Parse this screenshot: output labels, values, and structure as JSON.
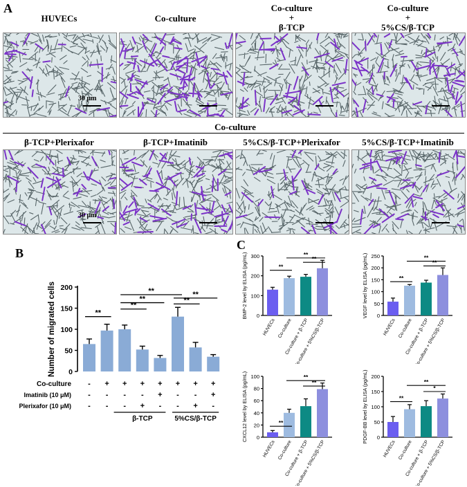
{
  "panelA": {
    "letter": "A",
    "row1_labels": [
      [
        "HUVECs"
      ],
      [
        "Co-culture"
      ],
      [
        "Co-culture",
        "+",
        "β-TCP"
      ],
      [
        "Co-culture",
        "+",
        "5%CS/β-TCP"
      ]
    ],
    "coculture_label": "Co-culture",
    "row2_labels": [
      "β-TCP+Plerixafor",
      "β-TCP+Imatinib",
      "5%CS/β-TCP+Plerixafor",
      "5%CS/β-TCP+Imatinib"
    ],
    "scale_label": "30 μm"
  },
  "panelB": {
    "letter": "B",
    "ylabel": "Number of migrated cells",
    "yticks": [
      "0",
      "50",
      "100",
      "150",
      "200"
    ],
    "row_labels": [
      "Co-culture",
      "Imatinib (10 μM)",
      "Plerixafor (10 μM)"
    ],
    "rows": [
      [
        "-",
        "+",
        "+",
        "+",
        "+",
        "+",
        "+",
        "+"
      ],
      [
        "-",
        "-",
        "-",
        "-",
        "+",
        "-",
        "-",
        "+"
      ],
      [
        "-",
        "-",
        "-",
        "+",
        "-",
        "-",
        "+",
        "-"
      ]
    ],
    "group_labels": [
      "β-TCP",
      "5%CS/β-TCP"
    ],
    "sig": "**"
  },
  "panelC": {
    "letter": "C",
    "categories": [
      "HUVECs",
      "Co-culture",
      "Co-culture + β-TCP",
      "Co-culture + 5%CS/β-TCP"
    ],
    "sig": [
      "**",
      "*"
    ]
  },
  "chart_data": [
    {
      "type": "bar",
      "ylabel": "Number of migrated cells",
      "ylim": [
        0,
        200
      ],
      "values": [
        65,
        97,
        100,
        52,
        32,
        130,
        57,
        35
      ],
      "errors": [
        12,
        15,
        10,
        8,
        6,
        22,
        12,
        5
      ]
    },
    {
      "type": "bar",
      "ylabel": "BMP-2 level by ELISA (pg/mL)",
      "ylim": [
        0,
        300
      ],
      "yticks": [
        "0",
        "100",
        "200",
        "300"
      ],
      "categories": [
        "HUVECs",
        "Co-culture",
        "Co-culture + β-TCP",
        "Co-culture + 5%CS/β-TCP"
      ],
      "values": [
        130,
        188,
        195,
        238
      ],
      "errors": [
        12,
        10,
        12,
        40
      ],
      "colors": [
        "#6b5ef0",
        "#9ebbe0",
        "#0d8a84",
        "#8d8fde"
      ]
    },
    {
      "type": "bar",
      "ylabel": "VEGF level by ELISA (pg/mL)",
      "ylim": [
        0,
        250
      ],
      "yticks": [
        "0",
        "50",
        "100",
        "150",
        "200",
        "250"
      ],
      "categories": [
        "HUVECs",
        "Co-culture",
        "Co-culture + β-TCP",
        "Co-culture + 5%CS/β-TCP"
      ],
      "values": [
        58,
        125,
        138,
        170
      ],
      "errors": [
        15,
        5,
        10,
        30
      ],
      "colors": [
        "#6b5ef0",
        "#9ebbe0",
        "#0d8a84",
        "#8d8fde"
      ]
    },
    {
      "type": "bar",
      "ylabel": "CXCL12 level by ELISA (pg/mL)",
      "ylim": [
        0,
        100
      ],
      "yticks": [
        "0",
        "20",
        "40",
        "60",
        "80",
        "100"
      ],
      "categories": [
        "HUVECs",
        "Co-culture",
        "Co-culture + β-TCP",
        "Co-culture + 5%CS/β-TCP"
      ],
      "values": [
        8,
        40,
        51,
        79
      ],
      "errors": [
        3,
        6,
        12,
        10
      ],
      "colors": [
        "#6b5ef0",
        "#9ebbe0",
        "#0d8a84",
        "#8d8fde"
      ]
    },
    {
      "type": "bar",
      "ylabel": "PDGF-BB level by ELISA (pg/mL)",
      "ylim": [
        0,
        200
      ],
      "yticks": [
        "0",
        "50",
        "100",
        "150",
        "200"
      ],
      "categories": [
        "HUVECs",
        "Co-culture",
        "Co-culture + β-TCP",
        "Co-culture + 5%CS/β-TCP"
      ],
      "values": [
        50,
        92,
        102,
        127
      ],
      "errors": [
        18,
        15,
        18,
        15
      ],
      "colors": [
        "#6b5ef0",
        "#9ebbe0",
        "#0d8a84",
        "#8d8fde"
      ]
    }
  ],
  "style": {
    "bar_color_B": "#8aabd6",
    "image_bg": "#dde7e9"
  }
}
